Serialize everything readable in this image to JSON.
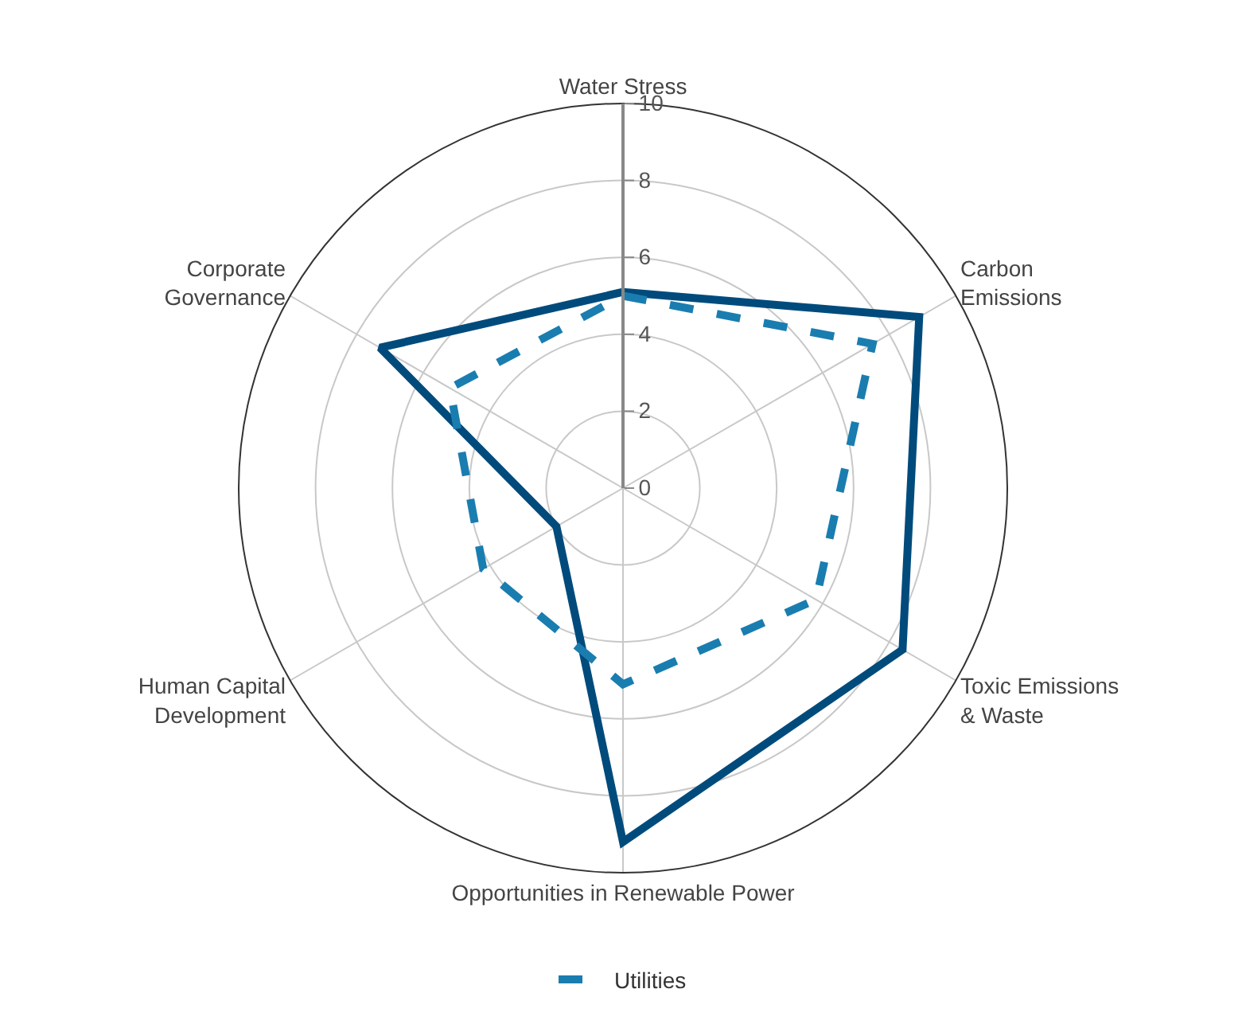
{
  "chart_data": {
    "type": "radar",
    "categories": [
      "Water Stress",
      "Carbon Emissions",
      "Toxic Emissions & Waste",
      "Opportunities in Renewable Power",
      "Human Capital Development",
      "Corporate Governance"
    ],
    "series": [
      {
        "color": "#004b7c",
        "values": [
          5.1,
          8.9,
          8.4,
          9.2,
          2.0,
          7.3
        ],
        "line_style": "solid"
      },
      {
        "name": "Utilities",
        "color": "#1a7db0",
        "values": [
          5.0,
          7.5,
          5.8,
          5.1,
          4.2,
          5.2
        ],
        "line_style": "dashed"
      }
    ],
    "ylim": [
      0,
      10
    ],
    "yticks": [
      0,
      2,
      4,
      6,
      8,
      10
    ],
    "grid": true,
    "legend": "bottom",
    "marker": "none"
  }
}
